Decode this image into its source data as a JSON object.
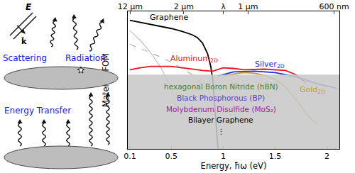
{
  "diagram": {
    "labels": {
      "scattering": "Scattering",
      "radiation": "Radiation",
      "energy_transfer": "Energy Transfer",
      "field": "E",
      "wavevector": "k̂"
    },
    "color": "#1a1ae6"
  },
  "chart_data": {
    "type": "line",
    "xlabel": "Energy, ħω (eV)",
    "ylabel": "Material FOM",
    "xlim": [
      0.08,
      2.12
    ],
    "xticks": [
      0.1,
      0.5,
      1,
      1.5,
      2
    ],
    "x2lim": [
      0.08,
      2.12
    ],
    "x2ticks": [
      {
        "value": 0.103,
        "label": "12 μm"
      },
      {
        "value": 0.62,
        "label": "2 μm"
      },
      {
        "value": 1.0,
        "label": "λ"
      },
      {
        "value": 1.24,
        "label": "1 μm"
      },
      {
        "value": 2.07,
        "label": "600 nm"
      }
    ],
    "ylim": [
      0,
      10
    ],
    "yticks": [],
    "tick_labels": "x",
    "grid": false,
    "series": [
      {
        "color": "#c4c4c4",
        "line_style": "solid",
        "x": [
          0.1,
          0.2,
          0.3,
          0.4,
          0.5,
          0.55
        ],
        "values": [
          8.6,
          7.9,
          7.0,
          5.9,
          4.4,
          3.0
        ]
      },
      {
        "color": "#b0b0b0",
        "line_style": "dash",
        "x": [
          0.1,
          0.3,
          0.5,
          0.7,
          0.8
        ],
        "values": [
          7.6,
          7.0,
          6.3,
          5.4,
          4.6
        ]
      },
      {
        "name": "Graphene",
        "color": "#000000",
        "line_style": "solid",
        "x": [
          0.1,
          0.2,
          0.3,
          0.4,
          0.5,
          0.6,
          0.7,
          0.75,
          0.8,
          0.85,
          0.88,
          0.9,
          0.92,
          0.95
        ],
        "values": [
          9.35,
          9.2,
          9.05,
          8.9,
          8.75,
          8.55,
          8.3,
          8.1,
          7.7,
          6.9,
          6.0,
          5.0,
          3.0,
          0
        ]
      },
      {
        "name": "Aluminum",
        "subscript": "2D",
        "color": "#e8141c",
        "line_style": "solid",
        "x": [
          0.1,
          0.2,
          0.3,
          0.5,
          0.7,
          0.8,
          0.9,
          1.0,
          1.1,
          1.2,
          1.4,
          1.6,
          1.7,
          1.8
        ],
        "values": [
          5.75,
          5.9,
          6.0,
          6.0,
          5.8,
          5.7,
          5.65,
          5.9,
          5.85,
          5.75,
          5.8,
          5.7,
          5.4,
          4.8
        ]
      },
      {
        "name": "Silver",
        "subscript": "2D",
        "color": "#1a2ee0",
        "line_style": "solid",
        "x": [
          0.95,
          1.1,
          1.3,
          1.5,
          1.7,
          1.9,
          2.1
        ],
        "values": [
          5.3,
          5.6,
          5.65,
          5.55,
          5.25,
          4.75,
          4.4
        ]
      },
      {
        "name": "Gold",
        "subscript": "2D",
        "color": "#c8a018",
        "line_style": "solid",
        "x": [
          1.0,
          1.1,
          1.2,
          1.3,
          1.4,
          1.5,
          1.6,
          1.7,
          1.8,
          1.9
        ],
        "values": [
          5.3,
          5.45,
          5.55,
          5.5,
          5.35,
          5.05,
          4.5,
          3.6,
          2.6,
          1.8
        ]
      }
    ],
    "region": {
      "ylim": [
        0,
        5.4
      ],
      "color": "#c8c8c8",
      "labels": [
        {
          "text": "hexagonal Boron Nitride (hBN)",
          "color": "#4a7f2a"
        },
        {
          "text": "Black Phosphorous (BP)",
          "color": "#5046c8"
        },
        {
          "text": "Molybdenum Disulfide (MoS₂)",
          "color": "#a0209c"
        },
        {
          "text": "Bilayer Graphene",
          "color": "#000000"
        },
        {
          "text": "⋮",
          "color": "#000000"
        }
      ]
    }
  }
}
